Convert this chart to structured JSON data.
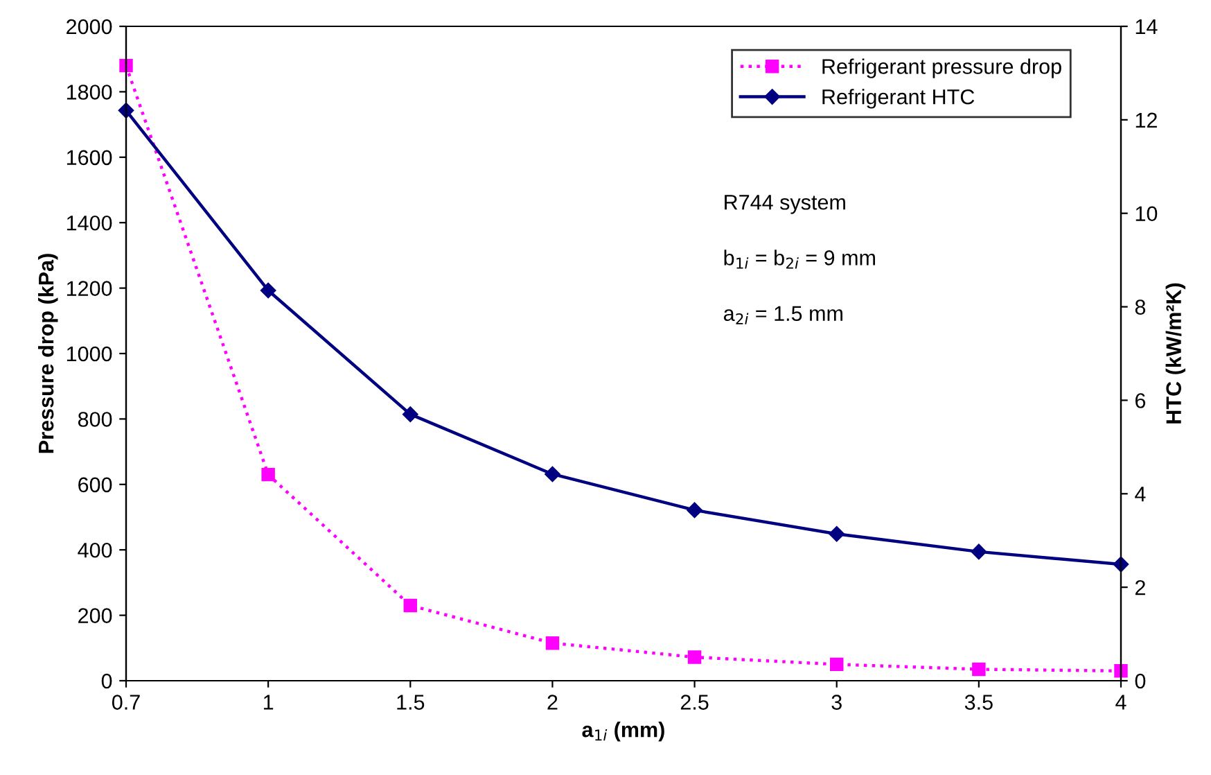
{
  "chart_data": {
    "type": "line",
    "xlabel": "a$_{1i}$ (mm)",
    "ylabel": "Pressure drop (kPa)",
    "y2label": "HTC (kW/m²K)",
    "categories": [
      "0.7",
      "1",
      "1.5",
      "2",
      "2.5",
      "3",
      "3.5",
      "4"
    ],
    "series": [
      {
        "name": "Refrigerant pressure drop",
        "color": "#ff00ff",
        "values": [
          1880,
          630,
          230,
          115,
          72,
          50,
          35,
          30
        ],
        "marker": "square",
        "line_style": "dotted"
      },
      {
        "name": "Refrigerant HTC",
        "color": "#000080",
        "values": [
          12.2,
          8.35,
          5.7,
          4.42,
          3.65,
          3.14,
          2.76,
          2.49
        ],
        "marker": "diamond",
        "line_style": "solid",
        "axis": "y2"
      }
    ],
    "ylim": [
      0,
      2000
    ],
    "yticks": [
      0,
      200,
      400,
      600,
      800,
      1000,
      1200,
      1400,
      1600,
      1800,
      2000
    ],
    "y2lim": [
      0,
      14
    ],
    "y2ticks": [
      0,
      2,
      4,
      6,
      8,
      10,
      12,
      14
    ],
    "annotations": [
      {
        "text": "R744 system"
      },
      {
        "text": "b$_{1i}$ = b$_{2i}$ = 9 mm"
      },
      {
        "text": "a$_{2i}$ = 1.5 mm"
      }
    ],
    "legend": "top right",
    "grid": false
  }
}
